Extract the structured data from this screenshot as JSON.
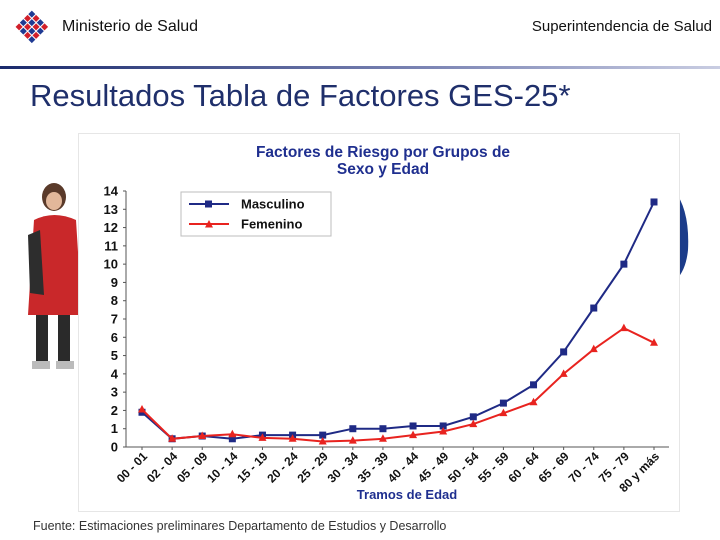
{
  "header": {
    "ministry": "Ministerio de Salud",
    "superintendencia": "Superintendencia de Salud"
  },
  "slide": {
    "title": "Resultados Tabla de Factores GES-25*"
  },
  "footer": {
    "source": "Fuente: Estimaciones preliminares Departamento de Estudios y Desarrollo"
  },
  "colors": {
    "masculino": "#1f2a85",
    "femenino": "#e8231f",
    "chart_title": "#1f2f8f"
  },
  "chart_data": {
    "type": "line",
    "title_lines": [
      "Factores de Riesgo por Grupos de",
      "Sexo y Edad"
    ],
    "xlabel": "Tramos de Edad",
    "ylabel": "",
    "ylim": [
      0,
      14
    ],
    "yticks": [
      0,
      1,
      2,
      3,
      4,
      5,
      6,
      7,
      8,
      9,
      10,
      11,
      12,
      13,
      14
    ],
    "legend_position": "top-left",
    "categories": [
      "00 - 01",
      "02 - 04",
      "05 - 09",
      "10 - 14",
      "15 - 19",
      "20 - 24",
      "25 - 29",
      "30 - 34",
      "35 - 39",
      "40 - 44",
      "45 - 49",
      "50 - 54",
      "55 - 59",
      "60 - 64",
      "65 - 69",
      "70 - 74",
      "75 - 79",
      "80 y más"
    ],
    "series": [
      {
        "name": "Masculino",
        "marker": "square",
        "values": [
          1.9,
          0.45,
          0.6,
          0.45,
          0.65,
          0.65,
          0.65,
          1.0,
          1.0,
          1.15,
          1.15,
          1.65,
          2.4,
          3.4,
          5.2,
          7.6,
          10.0,
          13.4
        ]
      },
      {
        "name": "Femenino",
        "marker": "triangle",
        "values": [
          2.05,
          0.45,
          0.6,
          0.7,
          0.5,
          0.45,
          0.3,
          0.35,
          0.45,
          0.65,
          0.85,
          1.25,
          1.85,
          2.45,
          4.0,
          5.35,
          6.5,
          5.7
        ]
      }
    ]
  }
}
